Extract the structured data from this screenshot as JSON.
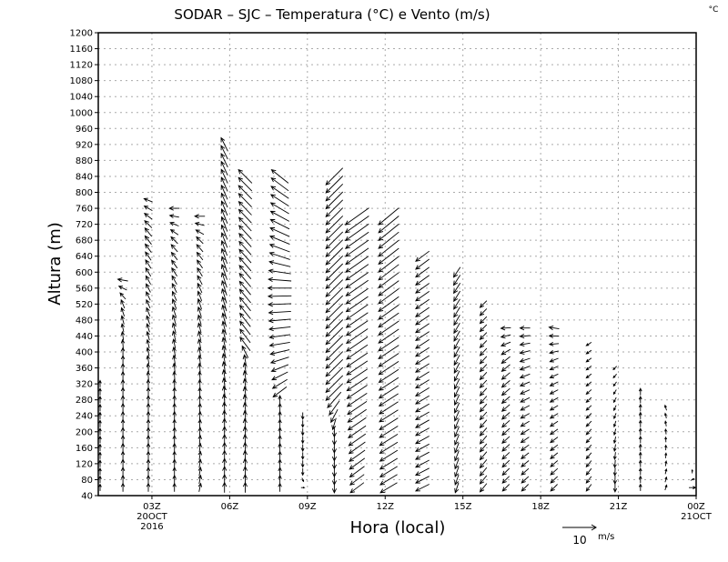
{
  "chart_data": {
    "type": "vector",
    "title": "SODAR – SJC – Temperatura (°C) e Vento (m/s)",
    "corner_unit": "°C",
    "xlabel": "Hora (local)",
    "ylabel": "Altura (m)",
    "ylim": [
      40,
      1200
    ],
    "xlim": [
      0.93,
      24
    ],
    "yticks": [
      40,
      80,
      120,
      160,
      200,
      240,
      280,
      320,
      360,
      400,
      440,
      480,
      520,
      560,
      600,
      640,
      680,
      720,
      760,
      800,
      840,
      880,
      920,
      960,
      1000,
      1040,
      1080,
      1120,
      1160,
      1200
    ],
    "xticks": [
      {
        "hour": 3,
        "label": "03Z",
        "sub1": "20OCT",
        "sub2": "2016"
      },
      {
        "hour": 6,
        "label": "06Z"
      },
      {
        "hour": 9,
        "label": "09Z"
      },
      {
        "hour": 12,
        "label": "12Z"
      },
      {
        "hour": 15,
        "label": "15Z"
      },
      {
        "hour": 18,
        "label": "18Z"
      },
      {
        "hour": 21,
        "label": "21Z"
      },
      {
        "hour": 24,
        "label": "00Z",
        "sub1": "21OCT"
      }
    ],
    "grid": true,
    "legend": {
      "position": "bottom-right",
      "value": "10",
      "unit": "m/s",
      "reference_speed": 10
    },
    "level_step_m": 20,
    "columns": [
      {
        "hour": 1.0,
        "bottom": 60,
        "top": 320,
        "profile": [
          [
            60,
            0,
            2
          ],
          [
            320,
            0,
            2
          ]
        ]
      },
      {
        "hour": 1.88,
        "bottom": 60,
        "top": 580,
        "profile": [
          [
            60,
            0,
            2.5
          ],
          [
            400,
            0,
            2.5
          ],
          [
            520,
            -1,
            2.5
          ],
          [
            580,
            -3,
            0.5
          ]
        ]
      },
      {
        "hour": 2.86,
        "bottom": 60,
        "top": 780,
        "profile": [
          [
            60,
            0,
            2.5
          ],
          [
            300,
            0,
            2.5
          ],
          [
            500,
            -1,
            2.5
          ],
          [
            700,
            -2,
            2.5
          ],
          [
            780,
            -2.5,
            1
          ]
        ]
      },
      {
        "hour": 3.87,
        "bottom": 60,
        "top": 760,
        "profile": [
          [
            60,
            0,
            2.5
          ],
          [
            300,
            0,
            2.5
          ],
          [
            500,
            -1,
            3
          ],
          [
            680,
            -2,
            2
          ],
          [
            760,
            -3,
            0
          ]
        ]
      },
      {
        "hour": 4.85,
        "bottom": 60,
        "top": 740,
        "profile": [
          [
            60,
            0.5,
            2.5
          ],
          [
            300,
            0,
            2.5
          ],
          [
            520,
            -1,
            3
          ],
          [
            680,
            -2,
            2
          ],
          [
            740,
            -3,
            0
          ]
        ]
      },
      {
        "hour": 5.8,
        "bottom": 60,
        "top": 920,
        "profile": [
          [
            60,
            0,
            3
          ],
          [
            200,
            0,
            3
          ],
          [
            600,
            -1.5,
            4.5
          ],
          [
            920,
            -2,
            4
          ]
        ]
      },
      {
        "hour": 6.6,
        "bottom": 60,
        "top": 840,
        "profile": [
          [
            60,
            0,
            3
          ],
          [
            380,
            -0.5,
            3
          ],
          [
            420,
            -3,
            4
          ],
          [
            840,
            -4,
            4
          ]
        ]
      },
      {
        "hour": 7.94,
        "bottom": 60,
        "top": 840,
        "profile": [
          [
            60,
            0,
            2.5
          ],
          [
            280,
            0,
            2.5
          ],
          [
            300,
            -4,
            -3
          ],
          [
            420,
            -6,
            -1
          ],
          [
            560,
            -7,
            0
          ],
          [
            640,
            -6,
            2
          ],
          [
            840,
            -5,
            4
          ]
        ]
      },
      {
        "hour": 8.82,
        "bottom": 60,
        "top": 240,
        "profile": [
          [
            60,
            1,
            0
          ],
          [
            100,
            0,
            -2
          ],
          [
            240,
            0,
            -2
          ]
        ]
      },
      {
        "hour": 10.04,
        "bottom": 60,
        "top": 840,
        "profile": [
          [
            60,
            0,
            -3
          ],
          [
            200,
            0,
            -3
          ],
          [
            300,
            -5,
            -5
          ],
          [
            840,
            -5,
            -5
          ]
        ]
      },
      {
        "hour": 10.92,
        "bottom": 60,
        "top": 740,
        "profile": [
          [
            60,
            -4,
            -3
          ],
          [
            300,
            -6,
            -4
          ],
          [
            740,
            -7,
            -5
          ]
        ]
      },
      {
        "hour": 12.14,
        "bottom": 60,
        "top": 740,
        "profile": [
          [
            60,
            -5,
            -3
          ],
          [
            400,
            -6,
            -4
          ],
          [
            740,
            -6,
            -5
          ]
        ]
      },
      {
        "hour": 13.44,
        "bottom": 60,
        "top": 640,
        "profile": [
          [
            60,
            -4,
            -2
          ],
          [
            640,
            -4,
            -3
          ]
        ]
      },
      {
        "hour": 14.77,
        "bottom": 60,
        "top": 610,
        "profile": [
          [
            60,
            -1,
            -3
          ],
          [
            610,
            -2,
            -3
          ]
        ]
      },
      {
        "hour": 15.79,
        "bottom": 60,
        "top": 520,
        "profile": [
          [
            60,
            -2,
            -2.5
          ],
          [
            520,
            -2,
            -2
          ]
        ]
      },
      {
        "hour": 16.66,
        "bottom": 60,
        "top": 470,
        "profile": [
          [
            60,
            -2,
            -2
          ],
          [
            380,
            -2.5,
            -2
          ],
          [
            470,
            -3,
            0
          ]
        ]
      },
      {
        "hour": 17.4,
        "bottom": 60,
        "top": 460,
        "profile": [
          [
            60,
            -2,
            -2
          ],
          [
            380,
            -3,
            -1
          ],
          [
            460,
            -3,
            0
          ]
        ]
      },
      {
        "hour": 18.52,
        "bottom": 60,
        "top": 460,
        "profile": [
          [
            60,
            -2,
            -2
          ],
          [
            380,
            -2.5,
            -1
          ],
          [
            460,
            -3,
            0.5
          ]
        ]
      },
      {
        "hour": 19.86,
        "bottom": 60,
        "top": 420,
        "profile": [
          [
            60,
            -1.5,
            -2
          ],
          [
            420,
            -1.5,
            -1
          ]
        ]
      },
      {
        "hour": 20.87,
        "bottom": 60,
        "top": 360,
        "profile": [
          [
            60,
            0,
            -2.5
          ],
          [
            360,
            -1,
            -1
          ]
        ]
      },
      {
        "hour": 21.85,
        "bottom": 60,
        "top": 300,
        "profile": [
          [
            60,
            0,
            2
          ],
          [
            300,
            0,
            2
          ]
        ]
      },
      {
        "hour": 22.83,
        "bottom": 60,
        "top": 270,
        "profile": [
          [
            60,
            0.5,
            1.5
          ],
          [
            270,
            -0.5,
            1.5
          ]
        ]
      },
      {
        "hour": 23.85,
        "bottom": 60,
        "top": 100,
        "profile": [
          [
            60,
            2,
            0
          ],
          [
            100,
            0,
            1
          ]
        ]
      }
    ]
  }
}
